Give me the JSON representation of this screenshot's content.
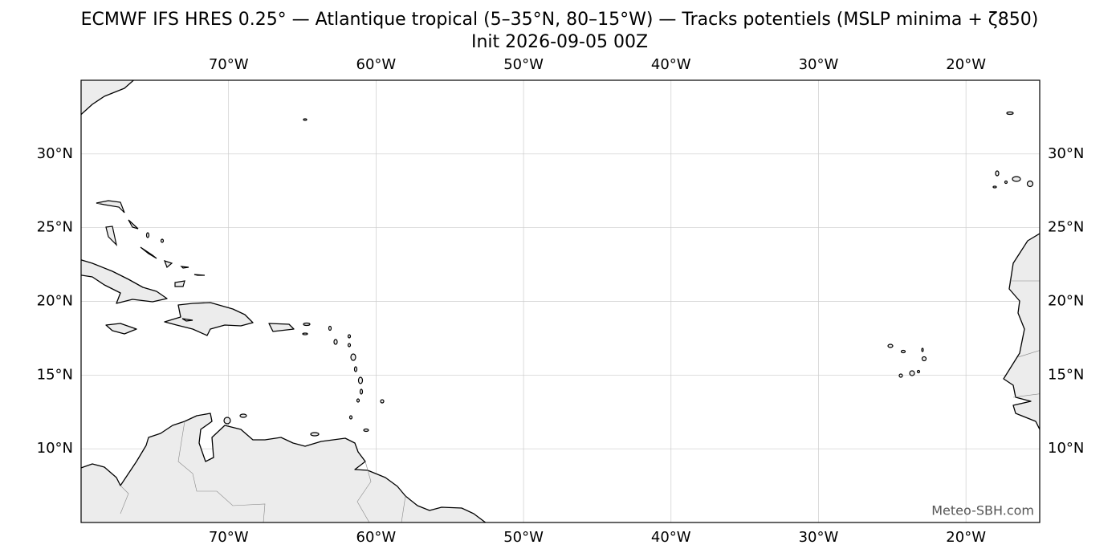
{
  "chart_data": {
    "type": "map",
    "title": "ECMWF IFS HRES 0.25° — Atlantique tropical (5–35°N, 80–15°W) — Tracks potentiels (MSLP minima + ζ850)",
    "subtitle": "Init 2026-09-05 00Z",
    "xlim": [
      -80,
      -15
    ],
    "ylim": [
      5,
      35
    ],
    "xticks": [
      {
        "value": -70,
        "label": "70°W"
      },
      {
        "value": -60,
        "label": "60°W"
      },
      {
        "value": -50,
        "label": "50°W"
      },
      {
        "value": -40,
        "label": "40°W"
      },
      {
        "value": -30,
        "label": "30°W"
      },
      {
        "value": -20,
        "label": "20°W"
      }
    ],
    "yticks": [
      {
        "value": 10,
        "label": "10°N"
      },
      {
        "value": 15,
        "label": "15°N"
      },
      {
        "value": 20,
        "label": "20°N"
      },
      {
        "value": 25,
        "label": "25°N"
      },
      {
        "value": 30,
        "label": "30°N"
      }
    ],
    "grid": true,
    "watermark": "Meteo-SBH.com"
  }
}
